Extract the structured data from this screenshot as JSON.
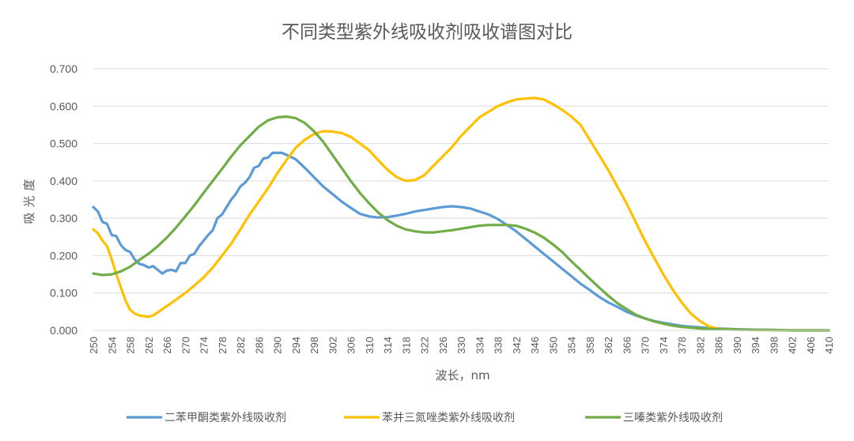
{
  "chart_data": {
    "type": "line",
    "title": "不同类型紫外线吸收剂吸收谱图对比",
    "xlabel": "波长，nm",
    "ylabel": "吸光度",
    "xlim": [
      250,
      410
    ],
    "ylim": [
      0,
      0.7
    ],
    "yticks": [
      "0.000",
      "0.100",
      "0.200",
      "0.300",
      "0.400",
      "0.500",
      "0.600",
      "0.700"
    ],
    "xticks": [
      "250",
      "254",
      "258",
      "262",
      "266",
      "270",
      "274",
      "278",
      "282",
      "286",
      "290",
      "294",
      "298",
      "302",
      "306",
      "310",
      "314",
      "318",
      "322",
      "326",
      "330",
      "334",
      "338",
      "342",
      "346",
      "350",
      "354",
      "358",
      "362",
      "366",
      "370",
      "374",
      "378",
      "382",
      "386",
      "390",
      "394",
      "398",
      "402",
      "406",
      "410"
    ],
    "grid": "horizontal",
    "legend_position": "bottom",
    "series": [
      {
        "name": "二苯甲酮类紫外线吸收剂",
        "color": "#5B9BD5",
        "x": [
          250,
          251,
          252,
          253,
          254,
          255,
          256,
          257,
          258,
          259,
          260,
          261,
          262,
          263,
          264,
          265,
          266,
          267,
          268,
          269,
          270,
          271,
          272,
          273,
          274,
          275,
          276,
          277,
          278,
          279,
          280,
          281,
          282,
          283,
          284,
          285,
          286,
          287,
          288,
          289,
          290,
          291,
          292,
          294,
          296,
          298,
          300,
          302,
          304,
          306,
          308,
          310,
          312,
          314,
          316,
          318,
          320,
          322,
          324,
          326,
          328,
          330,
          332,
          334,
          336,
          338,
          340,
          342,
          344,
          346,
          348,
          350,
          352,
          354,
          356,
          358,
          360,
          362,
          364,
          366,
          368,
          370,
          372,
          374,
          376,
          378,
          380,
          382,
          384,
          386,
          388,
          390,
          394,
          398,
          402,
          406,
          410
        ],
        "y": [
          0.33,
          0.318,
          0.29,
          0.285,
          0.255,
          0.252,
          0.228,
          0.215,
          0.21,
          0.19,
          0.178,
          0.175,
          0.168,
          0.172,
          0.162,
          0.152,
          0.16,
          0.162,
          0.158,
          0.18,
          0.18,
          0.2,
          0.205,
          0.225,
          0.24,
          0.255,
          0.268,
          0.3,
          0.31,
          0.33,
          0.35,
          0.365,
          0.385,
          0.395,
          0.41,
          0.435,
          0.44,
          0.46,
          0.462,
          0.475,
          0.475,
          0.475,
          0.47,
          0.458,
          0.435,
          0.41,
          0.385,
          0.365,
          0.345,
          0.328,
          0.312,
          0.305,
          0.302,
          0.303,
          0.307,
          0.312,
          0.318,
          0.322,
          0.326,
          0.33,
          0.332,
          0.33,
          0.326,
          0.318,
          0.31,
          0.298,
          0.282,
          0.265,
          0.245,
          0.225,
          0.205,
          0.185,
          0.165,
          0.145,
          0.125,
          0.108,
          0.09,
          0.075,
          0.063,
          0.05,
          0.04,
          0.032,
          0.025,
          0.02,
          0.016,
          0.012,
          0.01,
          0.008,
          0.006,
          0.005,
          0.004,
          0.003,
          0.002,
          0.001,
          0.0,
          0.0,
          0.0
        ]
      },
      {
        "name": "苯并三氮唑类紫外线吸收剂",
        "color": "#FFC000",
        "x": [
          250,
          251,
          252,
          253,
          254,
          255,
          256,
          257,
          258,
          259,
          260,
          261,
          262,
          263,
          264,
          266,
          268,
          270,
          272,
          274,
          276,
          278,
          280,
          282,
          284,
          286,
          288,
          290,
          292,
          294,
          296,
          298,
          300,
          302,
          304,
          306,
          308,
          310,
          312,
          314,
          316,
          318,
          320,
          322,
          324,
          326,
          328,
          330,
          332,
          334,
          336,
          338,
          340,
          342,
          344,
          346,
          348,
          350,
          352,
          354,
          356,
          358,
          360,
          362,
          364,
          366,
          368,
          370,
          372,
          374,
          376,
          378,
          380,
          382,
          384,
          386,
          390,
          394,
          398,
          402,
          406,
          410
        ],
        "y": [
          0.27,
          0.26,
          0.24,
          0.225,
          0.19,
          0.15,
          0.115,
          0.08,
          0.055,
          0.045,
          0.04,
          0.038,
          0.036,
          0.04,
          0.048,
          0.065,
          0.082,
          0.1,
          0.12,
          0.142,
          0.168,
          0.2,
          0.232,
          0.27,
          0.31,
          0.345,
          0.38,
          0.42,
          0.455,
          0.488,
          0.51,
          0.525,
          0.533,
          0.532,
          0.528,
          0.518,
          0.5,
          0.482,
          0.455,
          0.43,
          0.41,
          0.4,
          0.402,
          0.415,
          0.44,
          0.465,
          0.49,
          0.52,
          0.545,
          0.57,
          0.585,
          0.6,
          0.61,
          0.618,
          0.62,
          0.622,
          0.618,
          0.605,
          0.59,
          0.572,
          0.55,
          0.51,
          0.47,
          0.43,
          0.385,
          0.34,
          0.29,
          0.24,
          0.195,
          0.15,
          0.11,
          0.075,
          0.045,
          0.025,
          0.01,
          0.004,
          0.002,
          0.001,
          0.001,
          0.0,
          0.0,
          0.0
        ]
      },
      {
        "name": "三嗪类紫外线吸收剂",
        "color": "#70AD47",
        "x": [
          250,
          252,
          254,
          256,
          258,
          260,
          262,
          264,
          266,
          268,
          270,
          272,
          274,
          276,
          278,
          280,
          282,
          284,
          286,
          288,
          290,
          292,
          294,
          296,
          298,
          300,
          302,
          304,
          306,
          308,
          310,
          312,
          314,
          316,
          318,
          320,
          322,
          324,
          326,
          328,
          330,
          332,
          334,
          336,
          338,
          340,
          342,
          344,
          346,
          348,
          350,
          352,
          354,
          356,
          358,
          360,
          362,
          364,
          366,
          368,
          370,
          372,
          374,
          376,
          378,
          380,
          382,
          386,
          390,
          394,
          398,
          402,
          406,
          410
        ],
        "y": [
          0.152,
          0.148,
          0.15,
          0.158,
          0.17,
          0.188,
          0.205,
          0.225,
          0.248,
          0.275,
          0.305,
          0.335,
          0.368,
          0.4,
          0.432,
          0.465,
          0.495,
          0.52,
          0.545,
          0.562,
          0.57,
          0.572,
          0.568,
          0.555,
          0.533,
          0.505,
          0.47,
          0.435,
          0.4,
          0.368,
          0.34,
          0.315,
          0.295,
          0.28,
          0.27,
          0.265,
          0.262,
          0.262,
          0.265,
          0.268,
          0.272,
          0.276,
          0.28,
          0.282,
          0.282,
          0.282,
          0.28,
          0.272,
          0.262,
          0.248,
          0.23,
          0.21,
          0.185,
          0.162,
          0.138,
          0.115,
          0.093,
          0.073,
          0.057,
          0.042,
          0.032,
          0.024,
          0.018,
          0.013,
          0.009,
          0.007,
          0.005,
          0.003,
          0.002,
          0.001,
          0.001,
          0.0,
          0.0,
          0.0
        ]
      }
    ]
  }
}
